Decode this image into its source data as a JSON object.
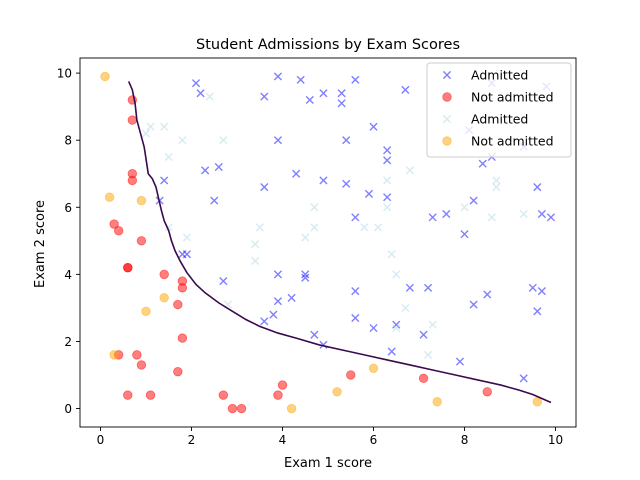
{
  "chart_data": {
    "type": "scatter",
    "title": "Student Admissions by Exam Scores",
    "xlabel": "Exam 1 score",
    "ylabel": "Exam 2 score",
    "xlim": [
      -0.45,
      10.45
    ],
    "ylim": [
      -0.55,
      10.45
    ],
    "xticks": [
      0,
      2,
      4,
      6,
      8,
      10
    ],
    "yticks": [
      0,
      2,
      4,
      6,
      8,
      10
    ],
    "grid": false,
    "legend_position": "top-right",
    "series": [
      {
        "name": "Admitted",
        "marker": "x",
        "color": "#0000ff",
        "opacity": 0.5,
        "points": [
          [
            2.1,
            9.7
          ],
          [
            2.2,
            9.4
          ],
          [
            3.9,
            9.9
          ],
          [
            4.4,
            9.8
          ],
          [
            3.6,
            9.3
          ],
          [
            4.6,
            9.2
          ],
          [
            4.9,
            9.4
          ],
          [
            5.3,
            9.4
          ],
          [
            5.3,
            9.1
          ],
          [
            5.6,
            9.8
          ],
          [
            6.7,
            9.5
          ],
          [
            8.6,
            9.7
          ],
          [
            9.8,
            9.6
          ],
          [
            3.9,
            8.0
          ],
          [
            5.4,
            8.0
          ],
          [
            6.0,
            8.4
          ],
          [
            6.3,
            7.7
          ],
          [
            6.3,
            7.4
          ],
          [
            8.1,
            8.3
          ],
          [
            9.3,
            7.8
          ],
          [
            8.6,
            7.5
          ],
          [
            8.4,
            7.3
          ],
          [
            2.3,
            7.1
          ],
          [
            2.6,
            7.2
          ],
          [
            4.3,
            7.0
          ],
          [
            1.4,
            6.8
          ],
          [
            3.6,
            6.6
          ],
          [
            4.9,
            6.8
          ],
          [
            5.4,
            6.7
          ],
          [
            5.9,
            6.4
          ],
          [
            6.3,
            6.3
          ],
          [
            9.6,
            6.6
          ],
          [
            1.3,
            6.2
          ],
          [
            2.5,
            6.2
          ],
          [
            8.2,
            6.2
          ],
          [
            5.6,
            5.7
          ],
          [
            7.3,
            5.7
          ],
          [
            7.6,
            5.8
          ],
          [
            9.7,
            5.8
          ],
          [
            9.9,
            5.7
          ],
          [
            8.0,
            5.2
          ],
          [
            1.8,
            4.6
          ],
          [
            1.9,
            4.6
          ],
          [
            3.9,
            4.0
          ],
          [
            4.5,
            4.0
          ],
          [
            4.5,
            3.9
          ],
          [
            6.8,
            3.6
          ],
          [
            7.2,
            3.6
          ],
          [
            2.7,
            3.8
          ],
          [
            5.6,
            3.5
          ],
          [
            9.5,
            3.6
          ],
          [
            9.7,
            3.5
          ],
          [
            3.9,
            3.2
          ],
          [
            4.2,
            3.3
          ],
          [
            8.2,
            3.1
          ],
          [
            8.5,
            3.4
          ],
          [
            3.8,
            2.8
          ],
          [
            3.6,
            2.6
          ],
          [
            5.6,
            2.7
          ],
          [
            6.5,
            2.5
          ],
          [
            6.0,
            2.4
          ],
          [
            4.7,
            2.2
          ],
          [
            4.9,
            1.9
          ],
          [
            7.1,
            2.2
          ],
          [
            6.4,
            1.7
          ],
          [
            7.9,
            1.4
          ],
          [
            9.3,
            0.9
          ],
          [
            9.6,
            2.9
          ]
        ]
      },
      {
        "name": "Not admitted",
        "marker": "o",
        "color": "#ff0000",
        "opacity": 0.5,
        "points": [
          [
            0.7,
            9.2
          ],
          [
            0.7,
            8.6
          ],
          [
            0.7,
            7.0
          ],
          [
            0.7,
            6.8
          ],
          [
            0.3,
            5.5
          ],
          [
            0.4,
            5.3
          ],
          [
            0.9,
            5.0
          ],
          [
            0.6,
            4.2
          ],
          [
            0.6,
            4.2
          ],
          [
            1.4,
            4.0
          ],
          [
            1.8,
            3.8
          ],
          [
            1.8,
            3.6
          ],
          [
            1.7,
            3.1
          ],
          [
            1.8,
            2.1
          ],
          [
            0.4,
            1.6
          ],
          [
            0.8,
            1.6
          ],
          [
            0.9,
            1.3
          ],
          [
            1.7,
            1.1
          ],
          [
            0.6,
            0.4
          ],
          [
            1.1,
            0.4
          ],
          [
            2.7,
            0.4
          ],
          [
            2.9,
            0.0
          ],
          [
            3.1,
            0.0
          ],
          [
            3.9,
            0.4
          ],
          [
            4.0,
            0.7
          ],
          [
            5.5,
            1.0
          ],
          [
            7.1,
            0.9
          ],
          [
            8.5,
            0.5
          ]
        ]
      },
      {
        "name": "Admitted",
        "marker": "x",
        "color": "#add8e6",
        "opacity": 0.5,
        "points": [
          [
            2.4,
            9.3
          ],
          [
            1.1,
            8.4
          ],
          [
            1.4,
            8.4
          ],
          [
            1.0,
            8.2
          ],
          [
            1.8,
            8.0
          ],
          [
            2.7,
            8.0
          ],
          [
            1.5,
            7.5
          ],
          [
            6.8,
            7.1
          ],
          [
            8.7,
            6.8
          ],
          [
            8.7,
            6.6
          ],
          [
            4.7,
            6.0
          ],
          [
            6.3,
            6.0
          ],
          [
            8.6,
            5.7
          ],
          [
            9.3,
            5.8
          ],
          [
            5.8,
            5.4
          ],
          [
            6.1,
            5.4
          ],
          [
            3.5,
            5.4
          ],
          [
            4.7,
            5.4
          ],
          [
            4.5,
            5.1
          ],
          [
            1.9,
            5.1
          ],
          [
            3.4,
            4.9
          ],
          [
            3.4,
            4.4
          ],
          [
            6.4,
            4.6
          ],
          [
            6.5,
            4.0
          ],
          [
            2.8,
            3.1
          ],
          [
            6.7,
            3.0
          ],
          [
            7.3,
            2.5
          ],
          [
            6.5,
            2.4
          ],
          [
            7.2,
            1.6
          ],
          [
            1.5,
            5.4
          ],
          [
            8.0,
            6.0
          ],
          [
            6.3,
            6.8
          ]
        ]
      },
      {
        "name": "Not admitted",
        "marker": "o",
        "color": "#ffa500",
        "opacity": 0.5,
        "points": [
          [
            0.1,
            9.9
          ],
          [
            0.2,
            6.3
          ],
          [
            0.9,
            6.2
          ],
          [
            1.4,
            3.3
          ],
          [
            1.0,
            2.9
          ],
          [
            0.3,
            1.6
          ],
          [
            6.0,
            1.2
          ],
          [
            5.2,
            0.5
          ],
          [
            4.2,
            0.0
          ],
          [
            7.4,
            0.2
          ],
          [
            9.6,
            0.2
          ]
        ]
      }
    ],
    "decision_boundary": {
      "color": "#3a0a4e",
      "points": [
        [
          0.62,
          9.75
        ],
        [
          0.7,
          9.5
        ],
        [
          0.76,
          9.1
        ],
        [
          0.8,
          8.6
        ],
        [
          0.88,
          8.2
        ],
        [
          0.96,
          7.8
        ],
        [
          1.0,
          7.45
        ],
        [
          1.05,
          7.0
        ],
        [
          1.14,
          6.85
        ],
        [
          1.22,
          6.6
        ],
        [
          1.28,
          6.25
        ],
        [
          1.34,
          5.9
        ],
        [
          1.4,
          5.6
        ],
        [
          1.5,
          5.3
        ],
        [
          1.56,
          5.0
        ],
        [
          1.64,
          4.7
        ],
        [
          1.75,
          4.4
        ],
        [
          1.9,
          4.05
        ],
        [
          2.1,
          3.7
        ],
        [
          2.3,
          3.45
        ],
        [
          2.6,
          3.15
        ],
        [
          2.9,
          2.9
        ],
        [
          3.2,
          2.65
        ],
        [
          3.5,
          2.45
        ],
        [
          3.9,
          2.25
        ],
        [
          4.3,
          2.1
        ],
        [
          4.8,
          1.9
        ],
        [
          5.3,
          1.75
        ],
        [
          5.8,
          1.6
        ],
        [
          6.3,
          1.45
        ],
        [
          6.8,
          1.3
        ],
        [
          7.3,
          1.15
        ],
        [
          7.8,
          1.0
        ],
        [
          8.3,
          0.85
        ],
        [
          8.8,
          0.7
        ],
        [
          9.2,
          0.55
        ],
        [
          9.5,
          0.42
        ],
        [
          9.7,
          0.3
        ],
        [
          9.9,
          0.18
        ]
      ]
    }
  }
}
